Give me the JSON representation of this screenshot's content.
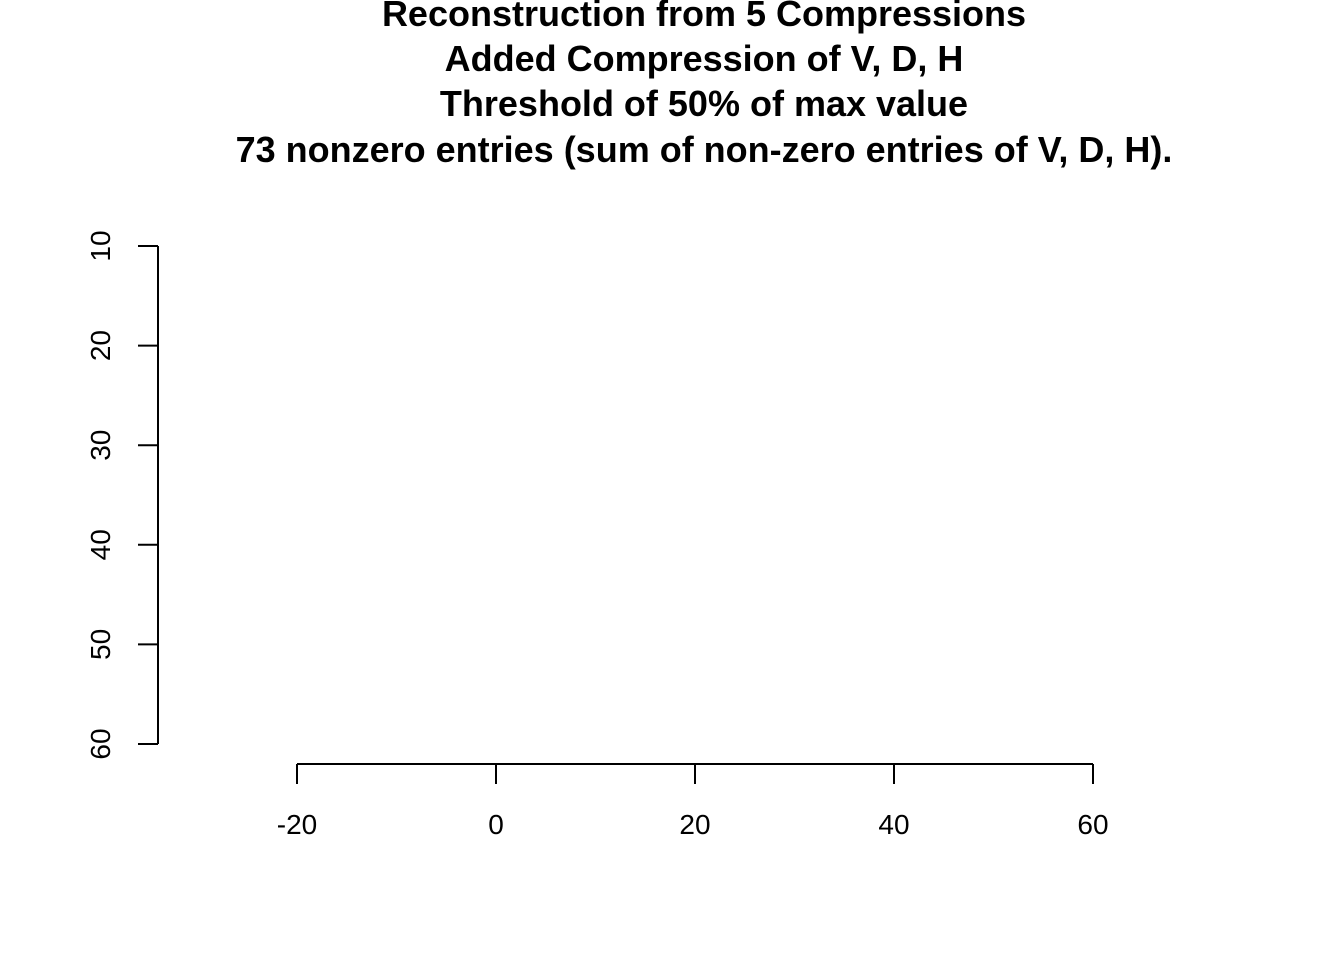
{
  "chart_data": {
    "type": "heatmap",
    "title_lines": [
      "Reconstruction from 5 Compressions",
      "Added Compression of V, D, H",
      "Threshold of 50% of max value",
      "73 nonzero entries (sum of non-zero entries of V, D, H)."
    ],
    "xlabel": "",
    "ylabel": "",
    "x_ticks": [
      "-20",
      "0",
      "20",
      "40",
      "60"
    ],
    "y_ticks": [
      "10",
      "20",
      "30",
      "40",
      "50",
      "60"
    ],
    "xlim": [
      -20,
      60
    ],
    "ylim": [
      10,
      60
    ],
    "y_reversed": true,
    "image_extent": {
      "x": [
        1,
        42
      ],
      "y": [
        1,
        62
      ]
    },
    "colormap": "grayscale",
    "grid": false,
    "legend": "none"
  }
}
